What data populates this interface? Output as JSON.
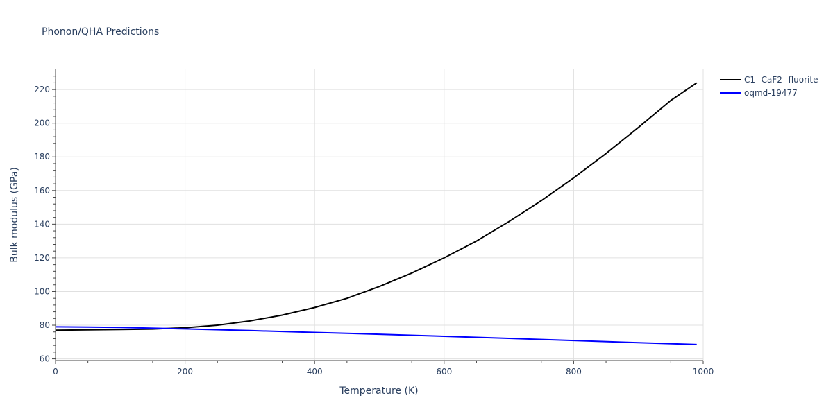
{
  "chart_data": {
    "type": "line",
    "title": "Phonon/QHA Predictions",
    "xlabel": "Temperature (K)",
    "ylabel": "Bulk modulus (GPa)",
    "xlim": [
      0,
      1000
    ],
    "ylim": [
      59,
      232
    ],
    "x_ticks": [
      0,
      200,
      400,
      600,
      800,
      1000
    ],
    "y_ticks": [
      60,
      80,
      100,
      120,
      140,
      160,
      180,
      200,
      220
    ],
    "grid": true,
    "legend_position": "top-right",
    "series": [
      {
        "name": "C1--CaF2--fluorite",
        "color": "#000000",
        "x": [
          0,
          50,
          100,
          150,
          200,
          250,
          300,
          350,
          400,
          450,
          500,
          550,
          600,
          650,
          700,
          750,
          800,
          850,
          900,
          950,
          990
        ],
        "y": [
          77,
          77.2,
          77.4,
          77.7,
          78.5,
          80,
          82.5,
          86,
          90.5,
          96,
          103,
          111,
          120,
          130,
          141.5,
          154,
          167.5,
          182,
          197.5,
          213.5,
          224
        ]
      },
      {
        "name": "oqmd-19477",
        "color": "#0000ff",
        "x": [
          0,
          100,
          200,
          300,
          400,
          500,
          600,
          700,
          800,
          900,
          990
        ],
        "y": [
          79,
          78.7,
          77.8,
          76.8,
          75.7,
          74.6,
          73.4,
          72.2,
          70.9,
          69.6,
          68.5
        ]
      }
    ]
  }
}
